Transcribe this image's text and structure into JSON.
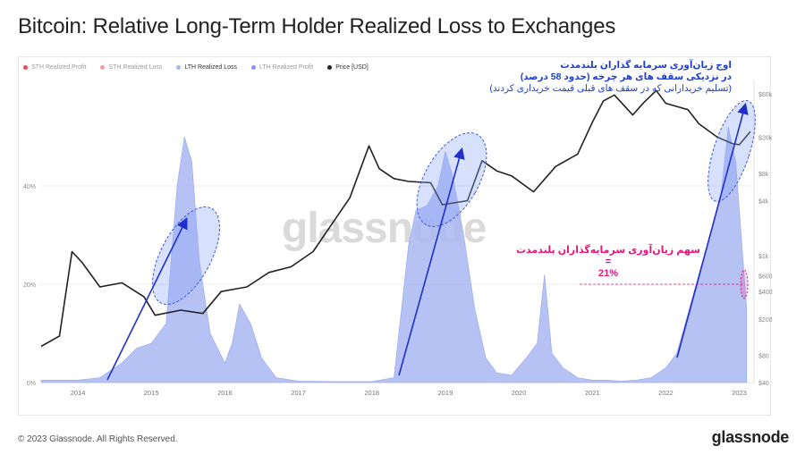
{
  "title": "Bitcoin: Relative Long-Term Holder Realized Loss to Exchanges",
  "legend": [
    {
      "label": "STH Realized Profit",
      "color": "#e84a5a",
      "active": false
    },
    {
      "label": "STH Realized Loss",
      "color": "#f29aa6",
      "active": false
    },
    {
      "label": "LTH Realized Loss",
      "color": "#a9b6f2",
      "active": true
    },
    {
      "label": "LTH Realized Profit",
      "color": "#7f97f2",
      "active": false
    },
    {
      "label": "Price [USD]",
      "color": "#222222",
      "active": true
    }
  ],
  "watermark": "glassnode",
  "annotations": {
    "peak_line1": "اوج زیان‌آوری سرمایه گذاران بلندمدت",
    "peak_line2": "در نزدیکی سقف های هر چرخه (حدود 58 درصد)",
    "peak_line3": "(تسلیم خریدارانی که در سقف های قبلی قیمت خریداری کردند)",
    "share_line1": "سهم زیان‌آوری سرمایه‌گذاران بلندمدت",
    "share_line2": "=",
    "share_line3": "21%"
  },
  "footer": "© 2023 Glassnode. All Rights Reserved.",
  "brand": "glassnode",
  "colors": {
    "lth_loss": "#a9b6f2",
    "price": "#222222",
    "arrow": "#1f2fc8",
    "ellipse_stroke": "#3b5bdb",
    "ellipse_fill": "rgba(140,165,245,0.35)",
    "accent_pink": "#e4177a"
  },
  "chart_data": {
    "type": "area",
    "x_ticks": [
      "2014",
      "2015",
      "2016",
      "2017",
      "2018",
      "2019",
      "2020",
      "2021",
      "2022",
      "2023"
    ],
    "y_left_ticks": [
      "0%",
      "20%",
      "40%"
    ],
    "y_left_range": [
      0,
      60
    ],
    "y_right_ticks": [
      "$40",
      "$80",
      "$200",
      "$400",
      "$600",
      "$1k",
      "$4k",
      "$8k",
      "$20k",
      "$60k"
    ],
    "y_right_scale": "log",
    "y_right_range": [
      40,
      70000
    ],
    "series": [
      {
        "name": "LTH Realized Loss",
        "unit": "%",
        "x": [
          2013.5,
          2014.0,
          2014.3,
          2014.6,
          2014.8,
          2015.0,
          2015.2,
          2015.35,
          2015.45,
          2015.55,
          2015.65,
          2015.8,
          2016.0,
          2016.1,
          2016.2,
          2016.35,
          2016.5,
          2016.7,
          2017.0,
          2017.5,
          2018.0,
          2018.3,
          2018.5,
          2018.6,
          2018.75,
          2018.9,
          2019.0,
          2019.1,
          2019.25,
          2019.4,
          2019.55,
          2019.7,
          2019.9,
          2020.1,
          2020.25,
          2020.35,
          2020.45,
          2020.6,
          2020.8,
          2021.0,
          2021.2,
          2021.4,
          2021.6,
          2021.8,
          2022.0,
          2022.15,
          2022.3,
          2022.45,
          2022.6,
          2022.75,
          2022.85,
          2022.95,
          2023.1
        ],
        "y": [
          0.5,
          0.5,
          1,
          4,
          7,
          8,
          12,
          40,
          50,
          45,
          25,
          10,
          4,
          8,
          16,
          12,
          5,
          1,
          0.3,
          0.2,
          0.2,
          1,
          28,
          35,
          36,
          40,
          47,
          42,
          30,
          15,
          5,
          2,
          1.5,
          5,
          8,
          22,
          6,
          3,
          1,
          0.5,
          0.5,
          0.3,
          0.5,
          1,
          3,
          6,
          14,
          22,
          30,
          38,
          52,
          45,
          15
        ]
      },
      {
        "name": "Price [USD]",
        "unit": "USD",
        "x": [
          2013.5,
          2013.75,
          2013.92,
          2014.05,
          2014.3,
          2014.6,
          2014.9,
          2015.05,
          2015.4,
          2015.7,
          2015.95,
          2016.3,
          2016.6,
          2016.9,
          2017.2,
          2017.5,
          2017.7,
          2017.96,
          2018.1,
          2018.3,
          2018.5,
          2018.8,
          2018.96,
          2019.3,
          2019.5,
          2019.7,
          2019.9,
          2020.2,
          2020.5,
          2020.8,
          2021.0,
          2021.15,
          2021.3,
          2021.55,
          2021.7,
          2021.87,
          2022.0,
          2022.3,
          2022.45,
          2022.7,
          2022.9,
          2023.0,
          2023.15
        ],
        "y": [
          100,
          130,
          1100,
          850,
          450,
          500,
          350,
          220,
          250,
          230,
          400,
          450,
          650,
          750,
          1100,
          2500,
          4300,
          16000,
          9000,
          7000,
          6500,
          6300,
          3600,
          4000,
          11000,
          8500,
          7500,
          5000,
          9500,
          13000,
          29000,
          50000,
          58000,
          35000,
          48000,
          65000,
          47000,
          40000,
          28000,
          20000,
          17000,
          16500,
          23000
        ]
      }
    ]
  }
}
